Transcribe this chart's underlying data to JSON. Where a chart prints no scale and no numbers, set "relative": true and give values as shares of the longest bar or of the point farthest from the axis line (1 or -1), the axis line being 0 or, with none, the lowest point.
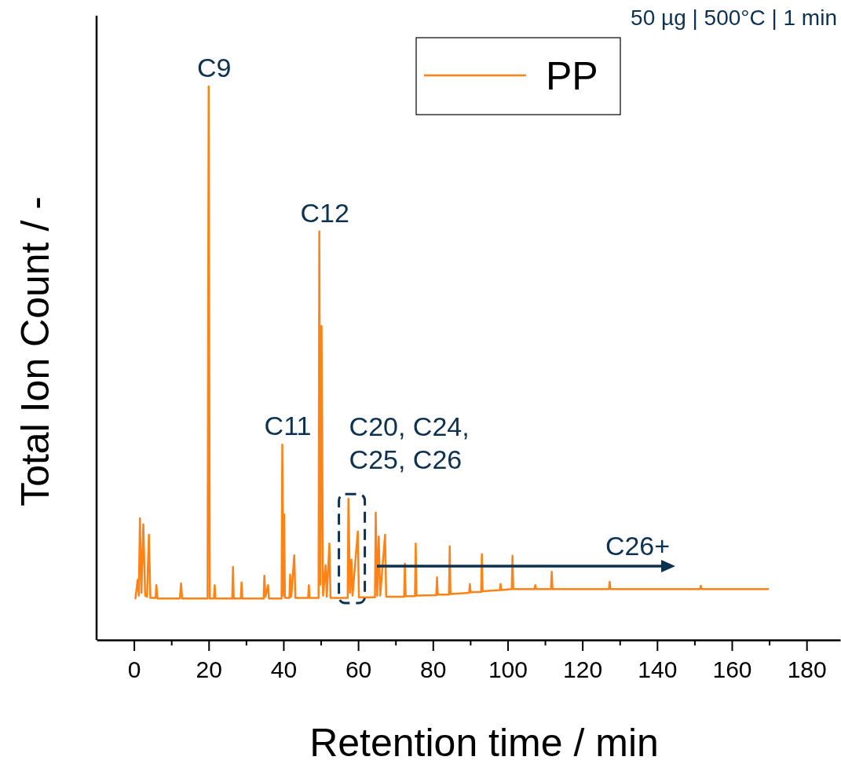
{
  "chart_data": {
    "type": "line",
    "subtitle": "50 µg | 500°C | 1 min",
    "xlabel": "Retention time / min",
    "ylabel": "Total Ion Count / -",
    "relative": true,
    "xlim": [
      -10,
      189
    ],
    "xticks": [
      0,
      {
        "value": 10,
        "label": null
      },
      20,
      {
        "value": 30,
        "label": null
      },
      40,
      {
        "value": 50,
        "label": null
      },
      60,
      {
        "value": 70,
        "label": null
      },
      80,
      {
        "value": 90,
        "label": null
      },
      100,
      {
        "value": 110,
        "label": null
      },
      120,
      {
        "value": 130,
        "label": null
      },
      140,
      {
        "value": 150,
        "label": null
      },
      160,
      {
        "value": 170,
        "label": null
      },
      180
    ],
    "legend": "top",
    "line_style": "solid",
    "marker": "none",
    "annotations": [
      {
        "text": "C9",
        "x": 20,
        "y": 1
      },
      {
        "text": "C12",
        "x": 49.6,
        "y": 0.738
      },
      {
        "text": "C11",
        "x": 39.7,
        "y": 0.353
      },
      {
        "text": "C20, C24,\nC25, C26",
        "x": 58,
        "y": 0.255
      },
      "C26+"
    ],
    "series": [
      {
        "name": "PP",
        "color": "#ff8214",
        "x": [
          0.4,
          1.0,
          1.3,
          1.6,
          2.0,
          2.5,
          3.0,
          3.5,
          4.0,
          4.4,
          5.8,
          6.0,
          6.3,
          12.3,
          12.6,
          12.9,
          19.7,
          20.0,
          20.3,
          21.4,
          21.6,
          21.8,
          26.3,
          26.5,
          26.7,
          28.6,
          28.8,
          29.0,
          34.7,
          34.9,
          35.2,
          35.9,
          36.1,
          39.5,
          39.7,
          40.0,
          40.2,
          40.4,
          41.6,
          41.8,
          42.1,
          42.9,
          43.2,
          46.6,
          46.8,
          47.0,
          49.4,
          49.6,
          49.9,
          50.2,
          50.6,
          51.3,
          51.6,
          52.3,
          52.6,
          57.2,
          57.4,
          57.8,
          58.2,
          58.5,
          59.9,
          60.2,
          64.5,
          64.7,
          65.1,
          65.5,
          65.9,
          67.2,
          67.5,
          72.3,
          72.5,
          72.7,
          75.2,
          75.4,
          75.6,
          80.9,
          81.1,
          81.3,
          84.3,
          84.5,
          84.7,
          89.7,
          89.9,
          90.1,
          92.9,
          93.1,
          93.3,
          97.9,
          98.1,
          98.3,
          101.1,
          101.3,
          101.5,
          107.2,
          107.4,
          107.6,
          111.6,
          111.8,
          112.0,
          127.1,
          127.3,
          127.5,
          151.5,
          151.7,
          151.9,
          169.7
        ],
        "values": [
          0.075,
          0.109,
          0.08,
          0.22,
          0.085,
          0.209,
          0.08,
          0.078,
          0.19,
          0.076,
          0.076,
          0.099,
          0.075,
          0.075,
          0.102,
          0.075,
          0.075,
          1,
          0.075,
          0.075,
          0.099,
          0.075,
          0.075,
          0.132,
          0.075,
          0.075,
          0.104,
          0.075,
          0.075,
          0.116,
          0.078,
          0.099,
          0.075,
          0.075,
          0.353,
          0.08,
          0.227,
          0.076,
          0.076,
          0.118,
          0.078,
          0.153,
          0.076,
          0.076,
          0.099,
          0.076,
          0.076,
          0.738,
          0.1,
          0.567,
          0.08,
          0.135,
          0.078,
          0.174,
          0.076,
          0.076,
          0.255,
          0.085,
          0.145,
          0.08,
          0.196,
          0.077,
          0.077,
          0.23,
          0.08,
          0.187,
          0.08,
          0.19,
          0.078,
          0.078,
          0.138,
          0.079,
          0.079,
          0.174,
          0.08,
          0.081,
          0.113,
          0.082,
          0.082,
          0.169,
          0.083,
          0.085,
          0.101,
          0.086,
          0.087,
          0.155,
          0.088,
          0.09,
          0.101,
          0.09,
          0.092,
          0.152,
          0.092,
          0.092,
          0.099,
          0.092,
          0.092,
          0.123,
          0.092,
          0.092,
          0.105,
          0.092,
          0.092,
          0.098,
          0.092,
          0.092
        ]
      }
    ]
  }
}
